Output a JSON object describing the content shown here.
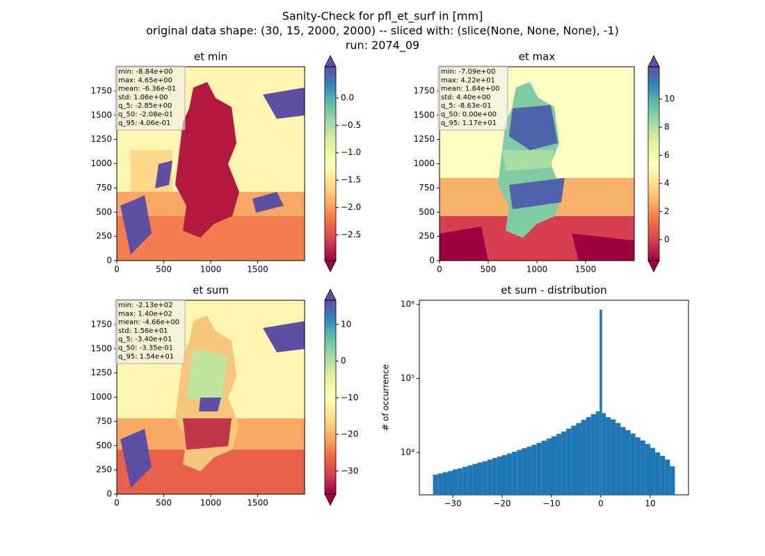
{
  "figure": {
    "title_lines": [
      "Sanity-Check for pfl_et_surf in [mm]",
      "original data shape: (30, 15, 2000, 2000) -- sliced with: (slice(None, None, None), -1)",
      "run: 2074_09"
    ]
  },
  "chart_data": [
    {
      "type": "heatmap",
      "title": "et min",
      "cmap": "Spectral",
      "xlim": [
        0,
        2000
      ],
      "ylim": [
        0,
        2000
      ],
      "xticks": [
        0,
        500,
        1000,
        1500
      ],
      "yticks": [
        0,
        250,
        500,
        750,
        1000,
        1250,
        1500,
        1750
      ],
      "colorbar": {
        "clim": [
          -2.97,
          0.57
        ],
        "ticks": [
          {
            "value": 0,
            "label": "0.0"
          },
          {
            "value": -0.5,
            "label": "−0.5"
          },
          {
            "value": -1,
            "label": "−1.0"
          },
          {
            "value": -1.5,
            "label": "−1.5"
          },
          {
            "value": -2,
            "label": "−2.0"
          },
          {
            "value": -2.5,
            "label": "−2.5"
          }
        ]
      },
      "stats": [
        "min: -8.84e+00",
        "max: 4.65e+00",
        "mean: -6.36e-01",
        "std: 1.06e+00",
        "q_5: -2.85e+00",
        "q_50: -2.08e-01",
        "q_95: 4.06e-01"
      ]
    },
    {
      "type": "heatmap",
      "title": "et max",
      "cmap": "Spectral",
      "xlim": [
        0,
        2000
      ],
      "ylim": [
        0,
        2000
      ],
      "xticks": [
        0,
        500,
        1000,
        1500
      ],
      "yticks": [
        0,
        250,
        500,
        750,
        1000,
        1250,
        1500,
        1750
      ],
      "colorbar": {
        "clim": [
          -1.49,
          12.3
        ],
        "ticks": [
          0,
          2,
          4,
          6,
          8,
          10
        ]
      },
      "stats": [
        "min: -7.09e+00",
        "max: 4.22e+01",
        "mean: 1.84e+00",
        "std: 4.40e+00",
        "q_5: -8.63e-01",
        "q_50: 0.00e+00",
        "q_95: 1.17e+01"
      ]
    },
    {
      "type": "heatmap",
      "title": "et sum",
      "cmap": "Spectral",
      "xlim": [
        0,
        2000
      ],
      "ylim": [
        0,
        2000
      ],
      "xticks": [
        0,
        500,
        1000,
        1500
      ],
      "yticks": [
        0,
        250,
        500,
        750,
        1000,
        1250,
        1500,
        1750
      ],
      "colorbar": {
        "clim": [
          -36.3,
          16.6
        ],
        "ticks": [
          {
            "value": -30,
            "label": "−30"
          },
          {
            "value": -20,
            "label": "−20"
          },
          {
            "value": -10,
            "label": "−10"
          },
          0,
          10
        ]
      },
      "stats": [
        "min: -2.13e+02",
        "max: 1.40e+02",
        "mean: -4.66e+00",
        "std: 1.56e+01",
        "q_5: -3.40e+01",
        "q_50: -3.35e-01",
        "q_95: 1.54e+01"
      ]
    },
    {
      "type": "histogram",
      "title": "et sum - distribution",
      "ylabel": "# of occurrence",
      "color": "#1f77b4",
      "log_y": true,
      "xlim": [
        -36.76,
        17.75
      ],
      "ylim": [
        2670,
        1140000
      ],
      "xticks": [
        {
          "value": -30,
          "label": "−30"
        },
        {
          "value": -20,
          "label": "−20"
        },
        {
          "value": -10,
          "label": "−10"
        },
        0,
        10
      ],
      "yticks": [
        {
          "value": 10000,
          "label": "10⁴"
        },
        {
          "value": 100000,
          "label": "10⁵"
        },
        {
          "value": 1000000,
          "label": "10⁶"
        }
      ],
      "bins": [
        -34,
        -33,
        -32,
        -31,
        -30,
        -29,
        -28,
        -27,
        -26,
        -25,
        -24,
        -23,
        -22,
        -21,
        -20,
        -19,
        -18,
        -17,
        -16,
        -15,
        -14,
        -13,
        -12,
        -11,
        -10,
        -9,
        -8,
        -7,
        -6,
        -5,
        -4,
        -3,
        -2,
        -1,
        -0.25,
        0.25,
        1,
        2,
        3,
        4,
        5,
        6,
        7,
        8,
        9,
        10,
        11,
        12,
        13,
        14,
        15
      ],
      "counts": [
        5000,
        5200,
        5400,
        5600,
        5900,
        6100,
        6400,
        6700,
        7000,
        7300,
        7600,
        8000,
        8400,
        8800,
        9200,
        9700,
        10200,
        10800,
        11400,
        12000,
        12700,
        13500,
        14400,
        15400,
        16500,
        17800,
        19200,
        21000,
        23000,
        25000,
        27500,
        30000,
        33000,
        36000,
        850000,
        34000,
        30000,
        28000,
        25000,
        22000,
        20000,
        18000,
        16000,
        14500,
        13000,
        11500,
        10000,
        9000,
        8000,
        6500
      ]
    }
  ]
}
